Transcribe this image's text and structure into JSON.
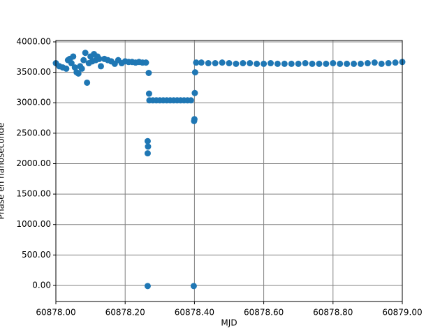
{
  "chart_data": {
    "type": "scatter",
    "xlabel": "MJD",
    "ylabel": "Phase en nanoseconde",
    "xlim": [
      60878.0,
      60879.0
    ],
    "xticks": [
      {
        "value": 60878.0,
        "label": "60878.00"
      },
      {
        "value": 60878.2,
        "label": "60878.20"
      },
      {
        "value": 60878.4,
        "label": "60878.40"
      },
      {
        "value": 60878.6,
        "label": "60878.60"
      },
      {
        "value": 60878.8,
        "label": "60878.80"
      },
      {
        "value": 60879.0,
        "label": "60879.00"
      }
    ],
    "ylim": [
      -264,
      4023
    ],
    "yticks": [
      {
        "value": 0,
        "label": "0.00"
      },
      {
        "value": 500,
        "label": "500.00"
      },
      {
        "value": 1000,
        "label": "1000.00"
      },
      {
        "value": 1500,
        "label": "1500.00"
      },
      {
        "value": 2000,
        "label": "2000.00"
      },
      {
        "value": 2500,
        "label": "2500.00"
      },
      {
        "value": 3000,
        "label": "3000.00"
      },
      {
        "value": 3500,
        "label": "3500.00"
      },
      {
        "value": 4000,
        "label": "4000.00"
      }
    ],
    "grid": true,
    "x": [
      60878.0,
      60878.01,
      60878.02,
      60878.03,
      60878.035,
      60878.04,
      60878.045,
      60878.05,
      60878.055,
      60878.06,
      60878.065,
      60878.07,
      60878.075,
      60878.08,
      60878.085,
      60878.09,
      60878.095,
      60878.1,
      60878.105,
      60878.11,
      60878.115,
      60878.12,
      60878.125,
      60878.13,
      60878.14,
      60878.15,
      60878.16,
      60878.17,
      60878.18,
      60878.19,
      60878.2,
      60878.21,
      60878.22,
      60878.23,
      60878.24,
      60878.25,
      60878.26,
      60878.265,
      60878.266,
      60878.265,
      60878.265,
      60878.268,
      60878.269,
      60878.27,
      60878.28,
      60878.29,
      60878.3,
      60878.31,
      60878.32,
      60878.33,
      60878.34,
      60878.35,
      60878.36,
      60878.37,
      60878.38,
      60878.39,
      60878.398,
      60878.399,
      60878.4,
      60878.401,
      60878.402,
      60878.405,
      60878.42,
      60878.44,
      60878.46,
      60878.48,
      60878.5,
      60878.52,
      60878.54,
      60878.56,
      60878.58,
      60878.6,
      60878.62,
      60878.64,
      60878.66,
      60878.68,
      60878.7,
      60878.72,
      60878.74,
      60878.76,
      60878.78,
      60878.8,
      60878.82,
      60878.84,
      60878.86,
      60878.88,
      60878.9,
      60878.92,
      60878.94,
      60878.96,
      60878.98,
      60879.0
    ],
    "series": [
      {
        "color": "#1f77b4",
        "values": [
          3650,
          3600,
          3580,
          3560,
          3700,
          3720,
          3650,
          3760,
          3580,
          3500,
          3480,
          3600,
          3560,
          3700,
          3820,
          3330,
          3650,
          3760,
          3680,
          3800,
          3700,
          3760,
          3720,
          3600,
          3720,
          3700,
          3680,
          3640,
          3700,
          3650,
          3680,
          3670,
          3670,
          3660,
          3670,
          3660,
          3660,
          2370,
          2280,
          2170,
          -10,
          3490,
          3150,
          3040,
          3040,
          3040,
          3040,
          3040,
          3040,
          3040,
          3040,
          3040,
          3040,
          3040,
          3040,
          3040,
          -10,
          2700,
          2730,
          3160,
          3500,
          3660,
          3660,
          3650,
          3650,
          3660,
          3650,
          3640,
          3650,
          3650,
          3640,
          3640,
          3650,
          3640,
          3640,
          3640,
          3640,
          3650,
          3640,
          3640,
          3640,
          3650,
          3640,
          3640,
          3640,
          3640,
          3650,
          3660,
          3640,
          3650,
          3660,
          3670
        ]
      }
    ]
  }
}
